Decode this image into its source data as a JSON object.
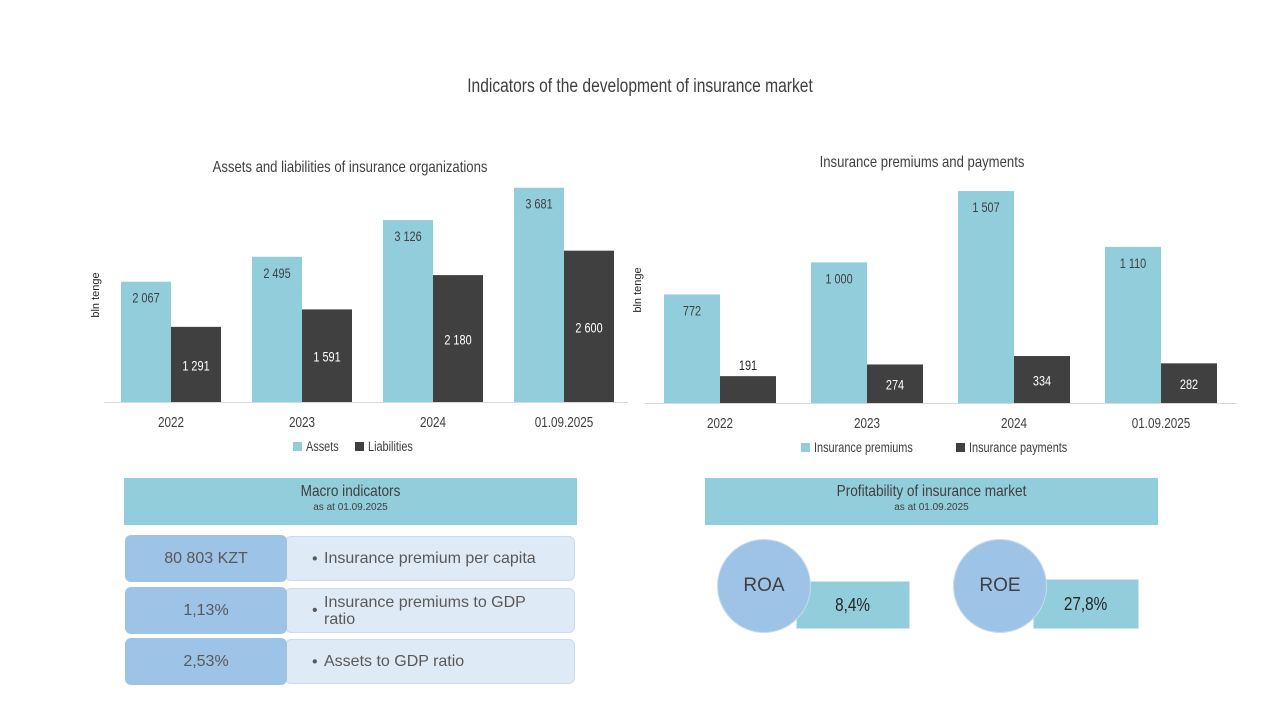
{
  "title": "Indicators of the development of insurance market",
  "chart_data": [
    {
      "type": "bar",
      "title": "Assets and liabilities of insurance organizations",
      "ylabel": "bln tenge",
      "categories": [
        "2022",
        "2023",
        "2024",
        "01.09.2025"
      ],
      "series": [
        {
          "name": "Assets",
          "values": [
            2067,
            2495,
            3126,
            3681
          ],
          "labels": [
            "2 067",
            "2 495",
            "3 126",
            "3 681"
          ],
          "color": "#92cddc"
        },
        {
          "name": "Liabilities",
          "values": [
            1291,
            1591,
            2180,
            2600
          ],
          "labels": [
            "1 291",
            "1 591",
            "2 180",
            "2 600"
          ],
          "color": "#404040"
        }
      ],
      "ylim": [
        0,
        3900
      ],
      "legend": "bottom",
      "grid": false
    },
    {
      "type": "bar",
      "title": "Insurance premiums and payments",
      "ylabel": "bln tenge",
      "categories": [
        "2022",
        "2023",
        "2024",
        "01.09.2025"
      ],
      "series": [
        {
          "name": "Insurance premiums",
          "values": [
            772,
            1000,
            1507,
            1110
          ],
          "labels": [
            "772",
            "1 000",
            "1 507",
            "1 110"
          ],
          "color": "#92cddc"
        },
        {
          "name": "Insurance payments",
          "values": [
            191,
            274,
            334,
            282
          ],
          "labels": [
            "191",
            "274",
            "334",
            "282"
          ],
          "color": "#404040"
        }
      ],
      "ylim": [
        0,
        1600
      ],
      "legend": "bottom",
      "grid": false
    }
  ],
  "macro": {
    "title": "Macro indicators",
    "subtitle": "as at 01.09.2025",
    "rows": [
      {
        "value": "80 803 KZT",
        "label": "Insurance  premium per capita"
      },
      {
        "value": "1,13%",
        "label": "Insurance  premiums to GDP ratio"
      },
      {
        "value": "2,53%",
        "label": "Assets to GDP ratio"
      }
    ]
  },
  "profitability": {
    "title": "Profitability  of insurance  market",
    "subtitle": "as at 01.09.2025",
    "items": [
      {
        "name": "ROA",
        "value": "8,4%"
      },
      {
        "name": "ROE",
        "value": "27,8%"
      }
    ]
  }
}
